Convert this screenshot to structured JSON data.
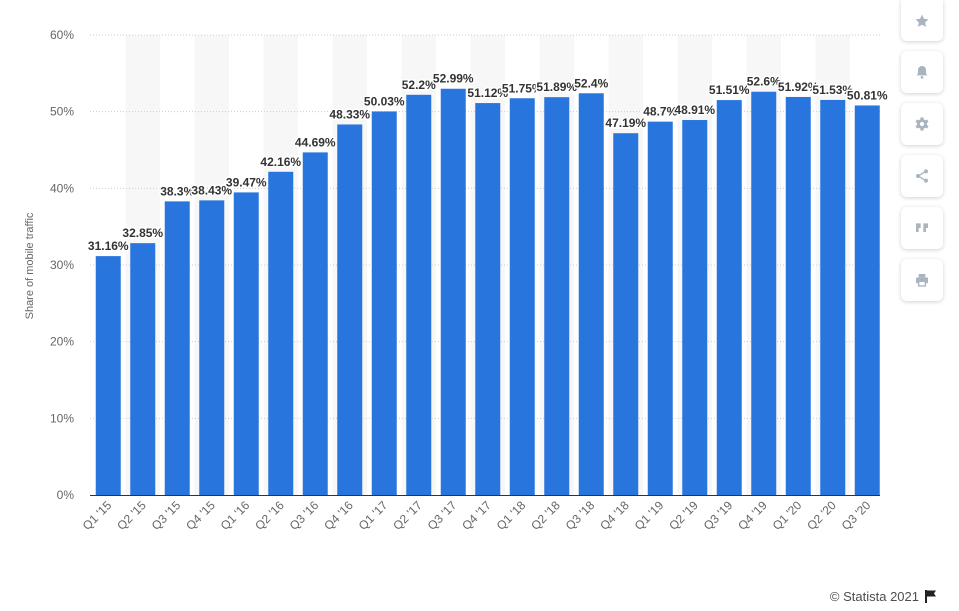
{
  "chart_data": {
    "type": "bar",
    "title": "",
    "xlabel": "",
    "ylabel": "Share of mobile traffic",
    "ylim": [
      0,
      60
    ],
    "yticks": [
      "0%",
      "10%",
      "20%",
      "30%",
      "40%",
      "50%",
      "60%"
    ],
    "grid": true,
    "categories": [
      "Q1 '15",
      "Q2 '15",
      "Q3 '15",
      "Q4 '15",
      "Q1 '16",
      "Q2 '16",
      "Q3 '16",
      "Q4 '16",
      "Q1 '17",
      "Q2 '17",
      "Q3 '17",
      "Q4 '17",
      "Q1 '18",
      "Q2 '18",
      "Q3 '18",
      "Q4 '18",
      "Q1 '19",
      "Q2 '19",
      "Q3 '19",
      "Q4 '19",
      "Q1 '20",
      "Q2 '20",
      "Q3 '20"
    ],
    "values": [
      31.16,
      32.85,
      38.3,
      38.43,
      39.47,
      42.16,
      44.69,
      48.33,
      50.03,
      52.2,
      52.99,
      51.12,
      51.75,
      51.89,
      52.4,
      47.19,
      48.7,
      48.91,
      51.51,
      52.6,
      51.92,
      51.53,
      50.81
    ],
    "data_labels": [
      "31.16%",
      "32.85%",
      "38.3%",
      "38.43%",
      "39.47%",
      "42.16%",
      "44.69%",
      "48.33%",
      "50.03%",
      "52.2%",
      "52.99%",
      "51.12%",
      "51.75%",
      "51.89%",
      "52.4%",
      "47.19%",
      "48.7%",
      "48.91%",
      "51.51%",
      "52.6%",
      "51.92%",
      "51.53%",
      "50.81%"
    ],
    "colors": {
      "bar": "#2876dd",
      "band": "#f7f7f7",
      "grid": "#cccccc",
      "label": "#333333",
      "axis_text": "#666666"
    }
  },
  "toolbar": [
    {
      "name": "favorite-button",
      "icon": "star-icon"
    },
    {
      "name": "notification-button",
      "icon": "bell-icon"
    },
    {
      "name": "settings-button",
      "icon": "gear-icon"
    },
    {
      "name": "share-button",
      "icon": "share-icon"
    },
    {
      "name": "cite-button",
      "icon": "quote-icon"
    },
    {
      "name": "print-button",
      "icon": "print-icon"
    }
  ],
  "footer": {
    "credit": "© Statista 2021",
    "flag_icon": "flag-icon"
  }
}
